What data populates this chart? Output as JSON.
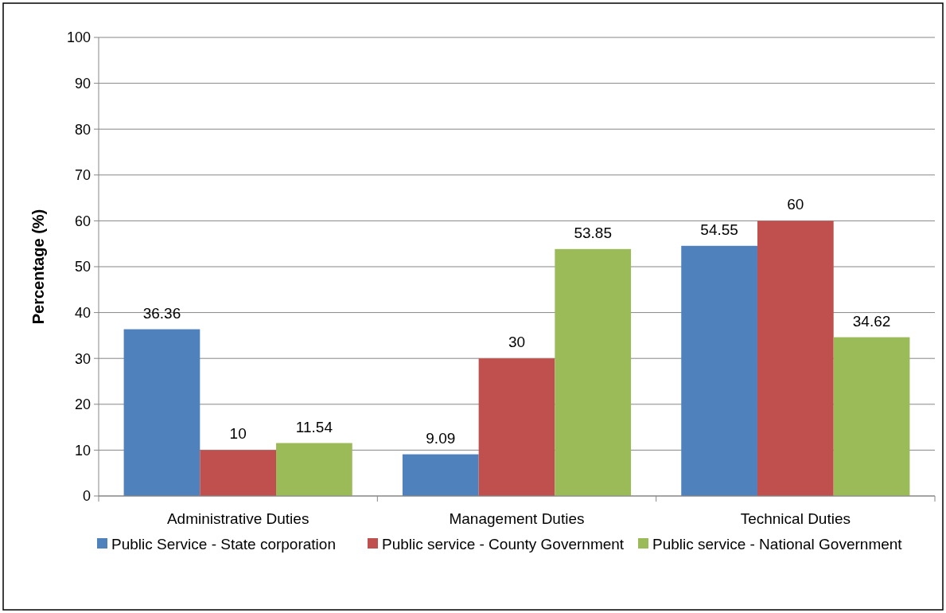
{
  "chart_data": {
    "type": "bar",
    "ylabel": "Percentage (%)",
    "categories": [
      "Administrative Duties",
      "Management Duties",
      "Technical Duties"
    ],
    "series": [
      {
        "name": "Public Service - State corporation",
        "color": "#4f81bd",
        "values": [
          36.36,
          9.09,
          54.55
        ]
      },
      {
        "name": "Public service - County Government",
        "color": "#c0504d",
        "values": [
          10,
          30,
          60
        ]
      },
      {
        "name": "Public service - National Government",
        "color": "#9bbb59",
        "values": [
          11.54,
          53.85,
          34.62
        ]
      }
    ],
    "ylim": [
      0,
      100
    ],
    "yticks": [
      0,
      10,
      20,
      30,
      40,
      50,
      60,
      70,
      80,
      90,
      100
    ],
    "grid": "y",
    "legend": "bottom",
    "data_labels": true
  }
}
